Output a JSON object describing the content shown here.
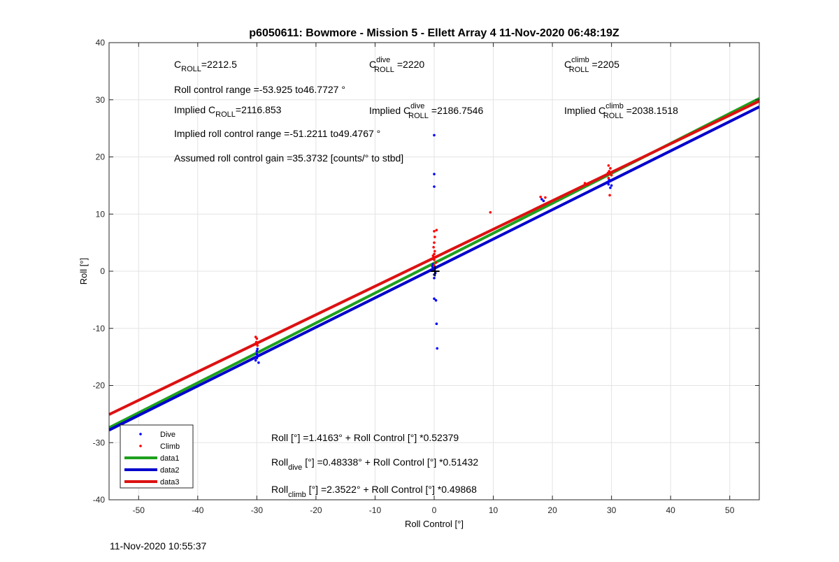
{
  "chart_data": {
    "type": "scatter",
    "title": "p6050611: Bowmore - Mission 5 - Ellett Array 4 11-Nov-2020 06:48:19Z",
    "xlabel": "Roll Control [°]",
    "ylabel": "Roll [°]",
    "xlim": [
      -55,
      55
    ],
    "ylim": [
      -40,
      40
    ],
    "xticks": [
      -50,
      -40,
      -30,
      -20,
      -10,
      0,
      10,
      20,
      30,
      40,
      50
    ],
    "yticks": [
      -40,
      -30,
      -20,
      -10,
      0,
      10,
      20,
      30,
      40
    ],
    "grid": true,
    "legend_position": "bottom-left",
    "series": [
      {
        "name": "Dive",
        "kind": "scatter",
        "color": "#0000ff",
        "points": [
          [
            -30,
            -14.5
          ],
          [
            -30,
            -15.2
          ],
          [
            -29.8,
            -14.8
          ],
          [
            -30.2,
            -15.6
          ],
          [
            -29.7,
            -16.0
          ],
          [
            -30,
            -14.0
          ],
          [
            -29.9,
            -13.6
          ],
          [
            -30.1,
            -15.0
          ],
          [
            0,
            23.8
          ],
          [
            0,
            17.0
          ],
          [
            0,
            14.8
          ],
          [
            0,
            0.5
          ],
          [
            0,
            0.2
          ],
          [
            -0.3,
            0.8
          ],
          [
            0.2,
            -0.3
          ],
          [
            0,
            -0.6
          ],
          [
            0,
            -1.2
          ],
          [
            -0.2,
            1.2
          ],
          [
            0,
            -4.8
          ],
          [
            0.3,
            -5.1
          ],
          [
            0.4,
            -9.2
          ],
          [
            0.5,
            -13.5
          ],
          [
            18.2,
            12.6
          ],
          [
            18.5,
            12.3
          ],
          [
            29.5,
            15.2
          ],
          [
            29.8,
            14.6
          ],
          [
            29.6,
            16.0
          ],
          [
            29.4,
            15.6
          ],
          [
            30,
            15.0
          ]
        ]
      },
      {
        "name": "Climb",
        "kind": "scatter",
        "color": "#ff0000",
        "points": [
          [
            -30,
            -11.8
          ],
          [
            -30.1,
            -12.4
          ],
          [
            -29.9,
            -13.0
          ],
          [
            -30,
            -12.7
          ],
          [
            -30.2,
            -11.5
          ],
          [
            0,
            7.0
          ],
          [
            0.4,
            7.2
          ],
          [
            0,
            5.0
          ],
          [
            -0.1,
            4.2
          ],
          [
            0.1,
            3.5
          ],
          [
            0,
            3.0
          ],
          [
            0.2,
            2.5
          ],
          [
            0,
            2.0
          ],
          [
            -0.2,
            2.7
          ],
          [
            0.3,
            1.5
          ],
          [
            0,
            1.0
          ],
          [
            0.1,
            6.0
          ],
          [
            9.5,
            10.3
          ],
          [
            18,
            13.0
          ],
          [
            18.8,
            12.9
          ],
          [
            25.5,
            15.4
          ],
          [
            26,
            15.2
          ],
          [
            29.5,
            18.5
          ],
          [
            29.8,
            18.0
          ],
          [
            29.6,
            17.5
          ],
          [
            29.4,
            17.2
          ],
          [
            30,
            16.8
          ],
          [
            29.7,
            13.3
          ],
          [
            29.5,
            16.3
          ]
        ]
      },
      {
        "name": "data1",
        "kind": "line",
        "color": "#1ea01e",
        "intercept": 1.4163,
        "slope": 0.52379
      },
      {
        "name": "data2",
        "kind": "line",
        "color": "#0000cc",
        "intercept": 0.48338,
        "slope": 0.51432
      },
      {
        "name": "data3",
        "kind": "line",
        "color": "#dd1111",
        "intercept": 2.3522,
        "slope": 0.49868
      }
    ],
    "annotations": {
      "c_roll": {
        "base": "C",
        "sub": "ROLL",
        "sup": "",
        "value": "=2212.5"
      },
      "c_roll_dive": {
        "base": "C",
        "sub": "ROLL",
        "sup": "dive",
        "value": "=2220"
      },
      "c_roll_climb": {
        "base": "C",
        "sub": "ROLL",
        "sup": "climb",
        "value": "=2205"
      },
      "roll_range": "Roll control range =-53.925 to46.7727 °",
      "implied_c_roll": {
        "prefix": "Implied ",
        "base": "C",
        "sub": "ROLL",
        "sup": "",
        "value": "=2116.853"
      },
      "implied_c_roll_dive": {
        "prefix": "Implied ",
        "base": "C",
        "sub": "ROLL",
        "sup": "dive",
        "value": "=2186.7546"
      },
      "implied_c_roll_climb": {
        "prefix": "Implied ",
        "base": "C",
        "sub": "ROLL",
        "sup": "climb",
        "value": "=2038.1518"
      },
      "implied_range": "Implied roll control range =-51.2211 to49.4767 °",
      "gain": "Assumed roll control gain =35.3732 [counts/° to stbd]",
      "fit_all": {
        "base": "Roll",
        "sub": "",
        "rest": " [°] =1.4163° + Roll Control [°] *0.52379"
      },
      "fit_dive": {
        "base": "Roll",
        "sub": "dive",
        "rest": " [°] =0.48338° + Roll Control [°] *0.51432"
      },
      "fit_climb": {
        "base": "Roll",
        "sub": "climb",
        "rest": " [°] =2.3522° + Roll Control [°] *0.49868"
      }
    }
  },
  "footer": {
    "timestamp": "11-Nov-2020 10:55:37"
  }
}
